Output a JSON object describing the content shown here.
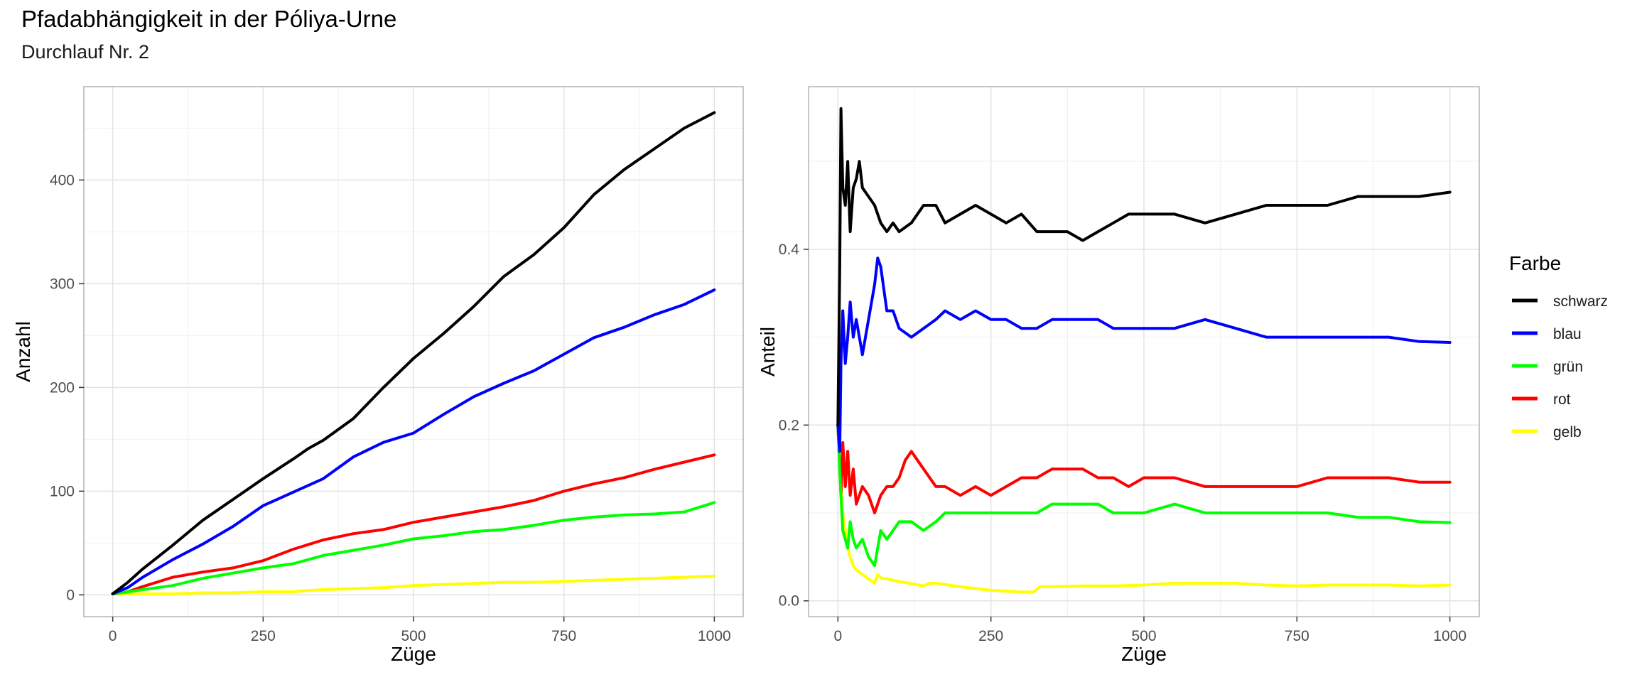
{
  "title": "Pfadabhängigkeit in der Póliya-Urne",
  "subtitle": "Durchlauf Nr. 2",
  "legend": {
    "title": "Farbe",
    "position": "right",
    "entries": [
      {
        "label": "schwarz",
        "color": "#000000"
      },
      {
        "label": "blau",
        "color": "#0000FF"
      },
      {
        "label": "grün",
        "color": "#00FF00"
      },
      {
        "label": "rot",
        "color": "#FF0000"
      },
      {
        "label": "gelb",
        "color": "#FFFF00"
      }
    ]
  },
  "chart_data": [
    {
      "type": "line",
      "xlabel": "Züge",
      "ylabel": "Anzahl",
      "xlim": [
        -48,
        1048
      ],
      "ylim": [
        -21,
        490
      ],
      "xticks": [
        0,
        250,
        500,
        750,
        1000
      ],
      "yticks": [
        0,
        100,
        200,
        300,
        400
      ],
      "grid": true,
      "series": [
        {
          "name": "schwarz",
          "color": "#000000",
          "x": [
            0,
            25,
            50,
            100,
            150,
            200,
            250,
            300,
            325,
            350,
            400,
            450,
            500,
            550,
            600,
            650,
            700,
            750,
            800,
            850,
            900,
            950,
            1000
          ],
          "y": [
            1,
            12,
            25,
            48,
            72,
            92,
            112,
            131,
            141,
            149,
            170,
            200,
            228,
            252,
            278,
            307,
            328,
            354,
            386,
            410,
            430,
            450,
            465
          ]
        },
        {
          "name": "blau",
          "color": "#0000FF",
          "x": [
            0,
            25,
            50,
            100,
            150,
            200,
            250,
            300,
            350,
            400,
            450,
            500,
            550,
            600,
            650,
            700,
            750,
            800,
            850,
            900,
            950,
            1000
          ],
          "y": [
            1,
            7,
            17,
            34,
            49,
            66,
            86,
            99,
            112,
            133,
            147,
            156,
            174,
            191,
            204,
            216,
            232,
            248,
            258,
            270,
            280,
            294
          ]
        },
        {
          "name": "grün",
          "color": "#00FF00",
          "x": [
            0,
            25,
            50,
            100,
            150,
            200,
            250,
            300,
            350,
            400,
            450,
            500,
            550,
            600,
            650,
            700,
            750,
            800,
            850,
            900,
            950,
            1000
          ],
          "y": [
            1,
            3,
            5,
            9,
            16,
            21,
            26,
            30,
            38,
            43,
            48,
            54,
            57,
            61,
            63,
            67,
            72,
            75,
            77,
            78,
            80,
            89
          ]
        },
        {
          "name": "rot",
          "color": "#FF0000",
          "x": [
            0,
            25,
            50,
            100,
            150,
            200,
            250,
            300,
            350,
            400,
            450,
            500,
            550,
            600,
            650,
            700,
            750,
            800,
            850,
            900,
            950,
            1000
          ],
          "y": [
            1,
            3,
            8,
            17,
            22,
            26,
            33,
            44,
            53,
            59,
            63,
            70,
            75,
            80,
            85,
            91,
            100,
            107,
            113,
            121,
            128,
            135
          ]
        },
        {
          "name": "gelb",
          "color": "#FFFF00",
          "x": [
            0,
            50,
            100,
            150,
            200,
            250,
            300,
            320,
            350,
            400,
            450,
            500,
            550,
            600,
            650,
            700,
            750,
            800,
            850,
            900,
            950,
            1000
          ],
          "y": [
            1,
            1,
            1,
            2,
            2,
            3,
            3,
            4,
            5,
            6,
            7,
            9,
            10,
            11,
            12,
            12,
            13,
            14,
            15,
            16,
            17,
            18
          ]
        }
      ]
    },
    {
      "type": "line",
      "xlabel": "Züge",
      "ylabel": "Anteil",
      "xlim": [
        -48,
        1048
      ],
      "ylim": [
        -0.018,
        0.585
      ],
      "xticks": [
        0,
        250,
        500,
        750,
        1000
      ],
      "yticks": [
        0.0,
        0.2,
        0.4
      ],
      "grid": true,
      "series": [
        {
          "name": "schwarz",
          "color": "#000000",
          "x": [
            0,
            3,
            5,
            8,
            12,
            16,
            20,
            25,
            30,
            35,
            40,
            50,
            60,
            70,
            80,
            90,
            100,
            120,
            140,
            160,
            175,
            200,
            225,
            250,
            275,
            300,
            325,
            350,
            375,
            400,
            425,
            450,
            475,
            500,
            550,
            600,
            650,
            700,
            750,
            800,
            850,
            900,
            950,
            1000
          ],
          "y": [
            0.2,
            0.38,
            0.56,
            0.47,
            0.45,
            0.5,
            0.42,
            0.47,
            0.48,
            0.5,
            0.47,
            0.46,
            0.45,
            0.43,
            0.42,
            0.43,
            0.42,
            0.43,
            0.45,
            0.45,
            0.43,
            0.44,
            0.45,
            0.44,
            0.43,
            0.44,
            0.42,
            0.42,
            0.42,
            0.41,
            0.42,
            0.43,
            0.44,
            0.44,
            0.44,
            0.43,
            0.44,
            0.45,
            0.45,
            0.45,
            0.46,
            0.46,
            0.46,
            0.465
          ]
        },
        {
          "name": "blau",
          "color": "#0000FF",
          "x": [
            0,
            3,
            5,
            8,
            12,
            16,
            20,
            25,
            30,
            40,
            50,
            60,
            65,
            70,
            80,
            90,
            100,
            120,
            140,
            160,
            175,
            200,
            225,
            250,
            275,
            300,
            325,
            350,
            375,
            400,
            425,
            450,
            475,
            500,
            550,
            600,
            650,
            700,
            750,
            800,
            850,
            900,
            950,
            1000
          ],
          "y": [
            0.2,
            0.17,
            0.27,
            0.33,
            0.27,
            0.3,
            0.34,
            0.3,
            0.32,
            0.28,
            0.32,
            0.36,
            0.39,
            0.38,
            0.33,
            0.33,
            0.31,
            0.3,
            0.31,
            0.32,
            0.33,
            0.32,
            0.33,
            0.32,
            0.32,
            0.31,
            0.31,
            0.32,
            0.32,
            0.32,
            0.32,
            0.31,
            0.31,
            0.31,
            0.31,
            0.32,
            0.31,
            0.3,
            0.3,
            0.3,
            0.3,
            0.3,
            0.295,
            0.294
          ]
        },
        {
          "name": "grün",
          "color": "#00FF00",
          "x": [
            0,
            3,
            5,
            8,
            12,
            16,
            20,
            25,
            30,
            40,
            50,
            60,
            70,
            80,
            90,
            100,
            120,
            140,
            160,
            175,
            200,
            225,
            250,
            275,
            300,
            325,
            350,
            375,
            400,
            425,
            450,
            475,
            500,
            550,
            600,
            650,
            700,
            750,
            800,
            850,
            900,
            950,
            1000
          ],
          "y": [
            0.2,
            0.15,
            0.12,
            0.08,
            0.07,
            0.06,
            0.09,
            0.07,
            0.06,
            0.07,
            0.05,
            0.04,
            0.08,
            0.07,
            0.08,
            0.09,
            0.09,
            0.08,
            0.09,
            0.1,
            0.1,
            0.1,
            0.1,
            0.1,
            0.1,
            0.1,
            0.11,
            0.11,
            0.11,
            0.11,
            0.1,
            0.1,
            0.1,
            0.11,
            0.1,
            0.1,
            0.1,
            0.1,
            0.1,
            0.095,
            0.095,
            0.09,
            0.089
          ]
        },
        {
          "name": "rot",
          "color": "#FF0000",
          "x": [
            0,
            3,
            5,
            8,
            12,
            16,
            20,
            25,
            30,
            40,
            50,
            60,
            70,
            80,
            90,
            100,
            110,
            120,
            140,
            160,
            175,
            200,
            225,
            250,
            275,
            300,
            325,
            350,
            375,
            400,
            425,
            450,
            475,
            500,
            550,
            600,
            650,
            700,
            750,
            800,
            850,
            900,
            950,
            1000
          ],
          "y": [
            0.2,
            0.15,
            0.12,
            0.18,
            0.13,
            0.17,
            0.12,
            0.15,
            0.11,
            0.13,
            0.12,
            0.1,
            0.12,
            0.13,
            0.13,
            0.14,
            0.16,
            0.17,
            0.15,
            0.13,
            0.13,
            0.12,
            0.13,
            0.12,
            0.13,
            0.14,
            0.14,
            0.15,
            0.15,
            0.15,
            0.14,
            0.14,
            0.13,
            0.14,
            0.14,
            0.13,
            0.13,
            0.13,
            0.13,
            0.14,
            0.14,
            0.14,
            0.135,
            0.135
          ]
        },
        {
          "name": "gelb",
          "color": "#FFFF00",
          "x": [
            0,
            3,
            5,
            8,
            12,
            16,
            20,
            25,
            30,
            40,
            50,
            60,
            65,
            70,
            80,
            100,
            140,
            150,
            160,
            200,
            250,
            300,
            320,
            330,
            350,
            400,
            450,
            500,
            550,
            600,
            650,
            700,
            750,
            800,
            850,
            900,
            950,
            1000
          ],
          "y": [
            0.2,
            0.17,
            0.14,
            0.1,
            0.08,
            0.06,
            0.05,
            0.04,
            0.035,
            0.03,
            0.025,
            0.02,
            0.03,
            0.026,
            0.025,
            0.022,
            0.017,
            0.02,
            0.02,
            0.016,
            0.012,
            0.01,
            0.01,
            0.016,
            0.016,
            0.017,
            0.017,
            0.018,
            0.02,
            0.02,
            0.02,
            0.018,
            0.017,
            0.018,
            0.018,
            0.018,
            0.017,
            0.018
          ]
        }
      ]
    }
  ]
}
